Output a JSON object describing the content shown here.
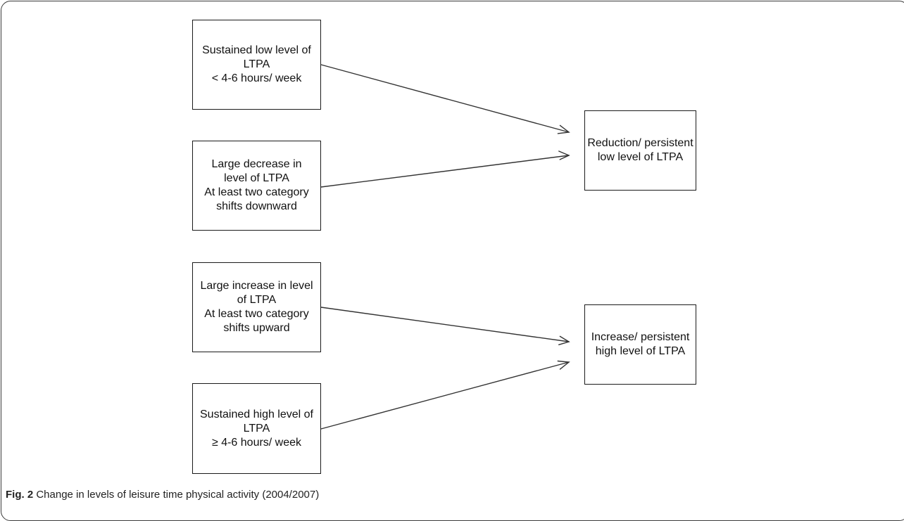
{
  "diagram": {
    "sources": [
      {
        "id": "sustained-low",
        "lines": [
          "Sustained low level of",
          "LTPA",
          "< 4-6 hours/ week"
        ],
        "target": "reduction"
      },
      {
        "id": "large-decrease",
        "lines": [
          "Large decrease in",
          "level of LTPA",
          "At least two category",
          "shifts downward"
        ],
        "target": "reduction"
      },
      {
        "id": "large-increase",
        "lines": [
          "Large increase in level",
          "of LTPA",
          "At least two category",
          "shifts upward"
        ],
        "target": "increase"
      },
      {
        "id": "sustained-high",
        "lines": [
          "Sustained high level of",
          "LTPA",
          "≥ 4-6 hours/ week"
        ],
        "target": "increase"
      }
    ],
    "outcomes": [
      {
        "id": "reduction",
        "lines": [
          "Reduction/ persistent",
          "low level of LTPA"
        ]
      },
      {
        "id": "increase",
        "lines": [
          "Increase/ persistent",
          "high level of LTPA"
        ]
      }
    ]
  },
  "caption": {
    "label": "Fig. 2",
    "text": "Change in levels of leisure time physical activity (2004/2007)"
  },
  "colors": {
    "box_border": "#1a1a1a",
    "arrow": "#333333",
    "frame": "#3a3a3a"
  }
}
